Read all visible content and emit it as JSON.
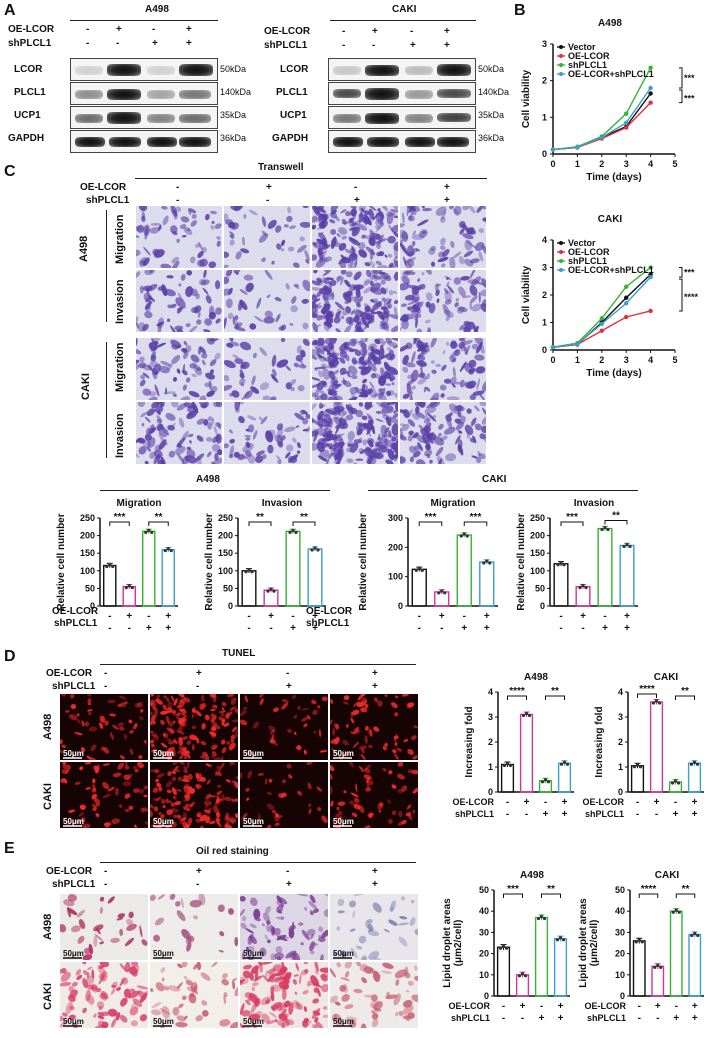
{
  "panel_labels": {
    "a": "A",
    "b": "B",
    "c": "C",
    "d": "D",
    "e": "E"
  },
  "panelA": {
    "cells": [
      "A498",
      "CAKI"
    ],
    "rows": [
      "OE-LCOR",
      "shPLCL1"
    ],
    "signs": {
      "oe": [
        "-",
        "+",
        "-",
        "+"
      ],
      "sh": [
        "-",
        "-",
        "+",
        "+"
      ]
    },
    "proteins": [
      "LCOR",
      "PLCL1",
      "UCP1",
      "GAPDH"
    ],
    "sizes": [
      "50kDa",
      "140kDa",
      "35kDa",
      "36kDa"
    ]
  },
  "panelC": {
    "title": "Transwell",
    "cells": [
      "A498",
      "CAKI"
    ],
    "assays": [
      "Migration",
      "Invasion"
    ],
    "rows": [
      "OE-LCOR",
      "shPLCL1"
    ],
    "oe": [
      "-",
      "+",
      "-",
      "+"
    ],
    "sh": [
      "-",
      "-",
      "+",
      "+"
    ]
  },
  "panelD": {
    "title": "TUNEL",
    "rows": [
      "OE-LCOR",
      "shPLCL1"
    ],
    "oe": [
      "-",
      "+",
      "-",
      "+"
    ],
    "sh": [
      "-",
      "-",
      "+",
      "+"
    ],
    "cells": [
      "A498",
      "CAKI"
    ],
    "scale": "50μm"
  },
  "panelE": {
    "title": "Oil red staining",
    "rows": [
      "OE-LCOR",
      "shPLCL1"
    ],
    "oe": [
      "-",
      "+",
      "-",
      "+"
    ],
    "sh": [
      "-",
      "-",
      "+",
      "+"
    ],
    "cells": [
      "A498",
      "CAKI"
    ],
    "scale": "50μm"
  },
  "colors": {
    "vector": "#111111",
    "oe": "#e0303a",
    "sh": "#33b533",
    "both": "#3aa0c8",
    "bar_oe": "#d6339a"
  },
  "chart_data": [
    {
      "id": "b1",
      "type": "line",
      "title": "A498",
      "xlabel": "Time (days)",
      "ylabel": "Cell viability",
      "x": [
        0,
        1,
        2,
        3,
        4
      ],
      "xlim": [
        0,
        5
      ],
      "ylim": [
        0,
        3
      ],
      "xticks": [
        0,
        1,
        2,
        3,
        4,
        5
      ],
      "yticks": [
        0,
        1,
        2,
        3
      ],
      "legend": "top-left",
      "series": [
        {
          "name": "Vector",
          "values": [
            0.12,
            0.18,
            0.45,
            0.75,
            1.65
          ]
        },
        {
          "name": "OE-LCOR",
          "values": [
            0.12,
            0.18,
            0.42,
            0.72,
            1.4
          ]
        },
        {
          "name": "shPLCL1",
          "values": [
            0.12,
            0.2,
            0.48,
            1.1,
            2.35
          ]
        },
        {
          "name": "OE-LCOR+shPLCL1",
          "values": [
            0.12,
            0.19,
            0.45,
            0.85,
            1.8
          ]
        }
      ],
      "annotations": [
        "***",
        "***"
      ]
    },
    {
      "id": "b2",
      "type": "line",
      "title": "CAKI",
      "xlabel": "Time (days)",
      "ylabel": "Cell viability",
      "x": [
        0,
        1,
        2,
        3,
        4
      ],
      "xlim": [
        0,
        5
      ],
      "ylim": [
        0,
        4
      ],
      "xticks": [
        0,
        1,
        2,
        3,
        4,
        5
      ],
      "yticks": [
        0,
        1,
        2,
        3,
        4
      ],
      "legend": "top-left",
      "series": [
        {
          "name": "Vector",
          "values": [
            0.1,
            0.2,
            1.0,
            1.9,
            2.75
          ]
        },
        {
          "name": "OE-LCOR",
          "values": [
            0.1,
            0.2,
            0.7,
            1.2,
            1.42
          ]
        },
        {
          "name": "shPLCL1",
          "values": [
            0.1,
            0.25,
            1.15,
            2.3,
            3.0
          ]
        },
        {
          "name": "OE-LCOR+shPLCL1",
          "values": [
            0.1,
            0.22,
            0.95,
            1.7,
            2.65
          ]
        }
      ],
      "annotations": [
        "***",
        "****"
      ]
    },
    {
      "id": "c1",
      "type": "bar",
      "group": "A498",
      "title": "Migration",
      "ylabel": "Relative cell number",
      "ylim": [
        0,
        250
      ],
      "yticks": [
        0,
        50,
        100,
        150,
        200,
        250
      ],
      "values": [
        115,
        55,
        212,
        160
      ],
      "annotations": [
        "***",
        "**"
      ]
    },
    {
      "id": "c2",
      "type": "bar",
      "group": "A498",
      "title": "Invasion",
      "ylabel": "Relative cell number",
      "ylim": [
        0,
        250
      ],
      "yticks": [
        0,
        50,
        100,
        150,
        200,
        250
      ],
      "values": [
        100,
        45,
        212,
        162
      ],
      "annotations": [
        "**",
        "**"
      ]
    },
    {
      "id": "c3",
      "type": "bar",
      "group": "CAKI",
      "title": "Migration",
      "ylabel": "Relative cell number",
      "ylim": [
        0,
        300
      ],
      "yticks": [
        0,
        100,
        200,
        300
      ],
      "values": [
        125,
        48,
        242,
        150
      ],
      "annotations": [
        "***",
        "***"
      ]
    },
    {
      "id": "c4",
      "type": "bar",
      "group": "CAKI",
      "title": "Invasion",
      "ylabel": "Relative cell number",
      "ylim": [
        0,
        250
      ],
      "yticks": [
        0,
        50,
        100,
        150,
        200,
        250
      ],
      "values": [
        120,
        55,
        220,
        172
      ],
      "annotations": [
        "***",
        "**"
      ]
    },
    {
      "id": "d1",
      "type": "bar",
      "title": "A498",
      "ylabel": "Increasing fold",
      "ylim": [
        0,
        4
      ],
      "yticks": [
        0,
        1,
        2,
        3,
        4
      ],
      "values": [
        1.1,
        3.1,
        0.45,
        1.15
      ],
      "annotations": [
        "****",
        "**"
      ]
    },
    {
      "id": "d2",
      "type": "bar",
      "title": "CAKI",
      "ylabel": "Increasing fold",
      "ylim": [
        0,
        4
      ],
      "yticks": [
        0,
        1,
        2,
        3,
        4
      ],
      "values": [
        1.05,
        3.6,
        0.4,
        1.15
      ],
      "annotations": [
        "****",
        "**"
      ]
    },
    {
      "id": "e1",
      "type": "bar",
      "title": "A498",
      "ylabel": "Lipid droplet areas (μm2/cell)",
      "ylim": [
        0,
        50
      ],
      "yticks": [
        0,
        10,
        20,
        30,
        40,
        50
      ],
      "values": [
        23,
        10,
        37,
        27
      ],
      "annotations": [
        "***",
        "**"
      ]
    },
    {
      "id": "e2",
      "type": "bar",
      "title": "CAKI",
      "ylabel": "Lipid droplet areas (μm2/cell)",
      "ylim": [
        0,
        50
      ],
      "yticks": [
        0,
        10,
        20,
        30,
        40,
        50
      ],
      "values": [
        26,
        14,
        40,
        29
      ],
      "annotations": [
        "****",
        "**"
      ]
    }
  ],
  "bar_axis": {
    "oe_label": "OE-LCOR",
    "sh_label": "shPLCL1"
  }
}
